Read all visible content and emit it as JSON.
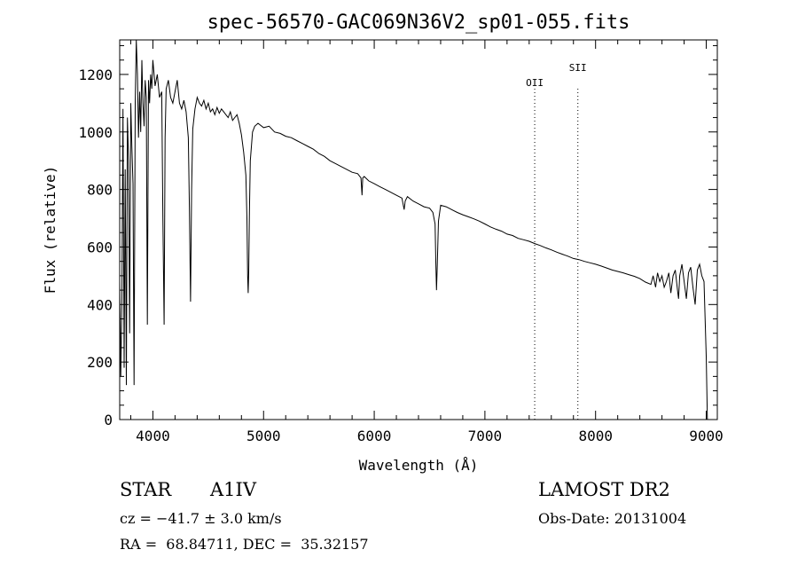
{
  "chart_data": {
    "type": "line",
    "title": "spec-56570-GAC069N36V2_sp01-055.fits",
    "xlabel": "Wavelength (Å)",
    "ylabel": "Flux (relative)",
    "xlim": [
      3700,
      9100
    ],
    "ylim": [
      0,
      1320
    ],
    "xticks": [
      "4000",
      "5000",
      "6000",
      "7000",
      "8000",
      "9000"
    ],
    "yticks": [
      "0",
      "200",
      "400",
      "600",
      "800",
      "1000",
      "1200"
    ],
    "grid": false,
    "series": [
      {
        "x": [
          3700,
          3710,
          3720,
          3730,
          3740,
          3750,
          3760,
          3770,
          3780,
          3790,
          3800,
          3810,
          3820,
          3830,
          3840,
          3850,
          3860,
          3870,
          3880,
          3890,
          3900,
          3910,
          3920,
          3930,
          3940,
          3950,
          3960,
          3970,
          3980,
          3990,
          4000,
          4020,
          4040,
          4060,
          4080,
          4090,
          4101,
          4110,
          4120,
          4140,
          4160,
          4180,
          4200,
          4220,
          4240,
          4260,
          4280,
          4300,
          4320,
          4330,
          4340,
          4350,
          4360,
          4380,
          4400,
          4420,
          4440,
          4460,
          4480,
          4500,
          4520,
          4540,
          4560,
          4580,
          4600,
          4620,
          4640,
          4660,
          4680,
          4700,
          4720,
          4740,
          4760,
          4780,
          4800,
          4820,
          4840,
          4850,
          4856,
          4861,
          4866,
          4872,
          4880,
          4900,
          4920,
          4950,
          5000,
          5050,
          5100,
          5150,
          5200,
          5250,
          5300,
          5350,
          5400,
          5450,
          5500,
          5550,
          5600,
          5650,
          5700,
          5750,
          5800,
          5850,
          5880,
          5890,
          5896,
          5910,
          5950,
          6000,
          6050,
          6100,
          6150,
          6200,
          6250,
          6270,
          6280,
          6300,
          6350,
          6400,
          6450,
          6500,
          6530,
          6550,
          6556,
          6563,
          6570,
          6580,
          6600,
          6650,
          6700,
          6750,
          6800,
          6850,
          6900,
          6950,
          7000,
          7050,
          7100,
          7150,
          7200,
          7250,
          7300,
          7350,
          7400,
          7450,
          7500,
          7550,
          7600,
          7650,
          7700,
          7750,
          7800,
          7850,
          7900,
          7950,
          8000,
          8050,
          8100,
          8150,
          8200,
          8250,
          8300,
          8350,
          8400,
          8450,
          8500,
          8520,
          8542,
          8560,
          8580,
          8600,
          8620,
          8640,
          8662,
          8680,
          8700,
          8720,
          8740,
          8750,
          8760,
          8780,
          8800,
          8820,
          8840,
          8860,
          8880,
          8900,
          8920,
          8940,
          8960,
          8980,
          9000,
          9010
        ],
        "values": [
          480,
          150,
          420,
          1080,
          180,
          870,
          120,
          1050,
          900,
          300,
          1100,
          950,
          820,
          120,
          1100,
          1320,
          1200,
          980,
          1140,
          1000,
          1250,
          1100,
          1020,
          1180,
          1120,
          330,
          1180,
          1100,
          1200,
          1150,
          1250,
          1160,
          1200,
          1120,
          1140,
          700,
          330,
          980,
          1150,
          1180,
          1120,
          1100,
          1140,
          1180,
          1100,
          1080,
          1110,
          1070,
          980,
          740,
          410,
          800,
          1010,
          1080,
          1120,
          1100,
          1090,
          1110,
          1080,
          1100,
          1070,
          1080,
          1060,
          1085,
          1065,
          1080,
          1070,
          1060,
          1050,
          1070,
          1040,
          1050,
          1060,
          1030,
          990,
          930,
          850,
          700,
          500,
          440,
          510,
          720,
          900,
          1000,
          1020,
          1030,
          1015,
          1020,
          1000,
          995,
          985,
          980,
          970,
          960,
          950,
          940,
          925,
          915,
          900,
          890,
          880,
          870,
          860,
          855,
          840,
          780,
          840,
          845,
          830,
          820,
          810,
          800,
          790,
          780,
          770,
          730,
          760,
          775,
          760,
          750,
          740,
          735,
          720,
          680,
          550,
          450,
          540,
          690,
          745,
          740,
          730,
          720,
          712,
          705,
          698,
          690,
          680,
          670,
          662,
          655,
          645,
          640,
          630,
          625,
          620,
          612,
          605,
          597,
          590,
          582,
          575,
          568,
          560,
          556,
          550,
          545,
          540,
          534,
          527,
          520,
          515,
          510,
          504,
          498,
          490,
          478,
          470,
          500,
          460,
          510,
          480,
          500,
          460,
          480,
          510,
          440,
          500,
          520,
          450,
          420,
          500,
          540,
          480,
          420,
          510,
          530,
          460,
          400,
          520,
          540,
          500,
          480,
          220,
          0
        ]
      }
    ],
    "annotations": [
      "OII",
      "SII"
    ],
    "lines_at": [
      7450,
      7840
    ]
  },
  "info": {
    "object_type": "STAR",
    "subclass": "A1IV",
    "survey": "LAMOST DR2",
    "cz": "cz = −41.7 ± 3.0 km/s",
    "obs_date": "Obs-Date: 20131004",
    "coords": "RA =  68.84711, DEC =  35.32157"
  }
}
